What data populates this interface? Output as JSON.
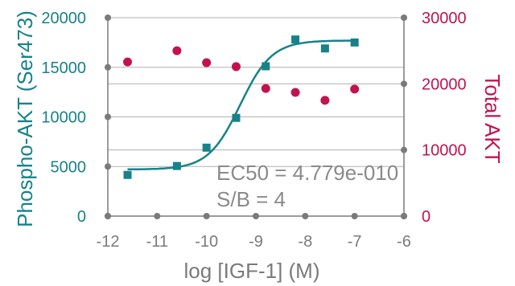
{
  "chart_data": {
    "type": "scatter",
    "title": "",
    "xlabel": "log [IGF-1] (M)",
    "ylabel_left": "Phospho-AKT (Ser473)",
    "ylabel_right": "Total AKT",
    "xlim": [
      -12,
      -6
    ],
    "ylim_left": [
      0,
      20000
    ],
    "ylim_right": [
      0,
      30000
    ],
    "x_ticks": [
      "-12",
      "-11",
      "-10",
      "-9",
      "-8",
      "-7",
      "-6"
    ],
    "y_left_ticks": [
      "0",
      "5000",
      "10000",
      "15000",
      "20000"
    ],
    "y_right_ticks": [
      "0",
      "10000",
      "20000",
      "30000"
    ],
    "grid": "horizontal",
    "colors": {
      "left": "#17828a",
      "right": "#c2134e",
      "axis": "#7a7a7a",
      "grid": "#b0b0b0"
    },
    "series": [
      {
        "axis": "left",
        "marker": "square",
        "x": [
          -11.6,
          -10.6,
          -10.0,
          -9.4,
          -8.8,
          -8.2,
          -7.6,
          -7.0
        ],
        "y": [
          4150,
          5050,
          6900,
          9900,
          15100,
          17800,
          16900,
          17500
        ]
      },
      {
        "axis": "right",
        "marker": "circle",
        "x": [
          -11.6,
          -10.6,
          -10.0,
          -9.4,
          -8.8,
          -8.2,
          -7.6,
          -7.0
        ],
        "y": [
          23300,
          25000,
          23200,
          22600,
          19300,
          18700,
          17500,
          19200
        ]
      }
    ],
    "fit": {
      "series": 0,
      "model": "sigmoid",
      "bottom": 4700,
      "top": 17700,
      "log_ec50": -9.32,
      "hill": 1.35
    },
    "annotations": [
      "EC50 = 4.779e-010",
      "S/B = 4"
    ]
  }
}
